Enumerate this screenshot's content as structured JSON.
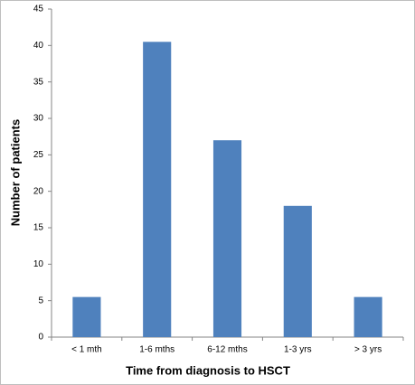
{
  "chart_data": {
    "type": "bar",
    "x_label": "Time from diagnosis to HSCT",
    "y_label": "Number of patients",
    "categories": [
      "< 1 mth",
      "1-6 mths",
      "6-12 mths",
      "1-3 yrs",
      "> 3 yrs"
    ],
    "values": [
      5.5,
      40.5,
      27,
      18,
      5.5
    ],
    "color": "#4f81bd",
    "ylim": [
      0,
      45
    ],
    "yticks": [
      0,
      5,
      10,
      15,
      20,
      25,
      30,
      35,
      40,
      45
    ],
    "grid": false
  }
}
